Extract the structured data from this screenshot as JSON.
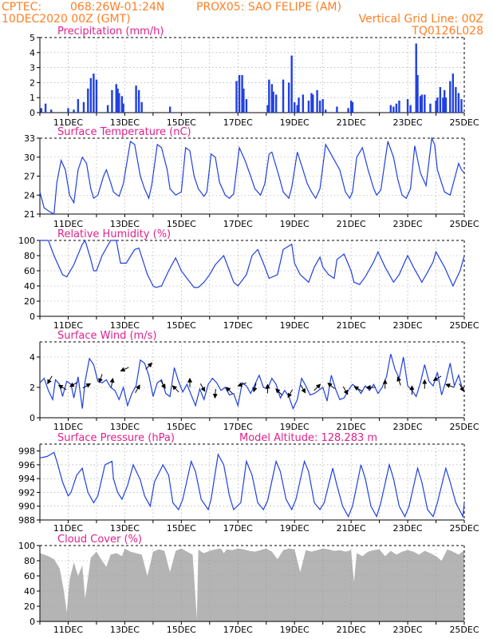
{
  "header": {
    "line1_left": "CPTEC:",
    "line1_coords": "068:26W-01:24N",
    "line1_station": "PROX05: SAO FELIPE (AM)",
    "line2_left": "10DEC2020 00Z (GMT)",
    "line2_right": "Vertical Grid Line: 00Z",
    "line3_right": "TQ0126L028"
  },
  "colors": {
    "header": "#ff7f24",
    "title": "#e0208c",
    "series": "#2040e0",
    "arrow": "#000000",
    "cloud": "#b4b4b4"
  },
  "x_axis": {
    "start_day": 10,
    "end_day": 25,
    "ticks": [
      "11DEC",
      "13DEC",
      "15DEC",
      "17DEC",
      "19DEC",
      "21DEC",
      "23DEC",
      "25DEC"
    ],
    "tick_days": [
      11,
      13,
      15,
      17,
      19,
      21,
      23,
      25
    ]
  },
  "chart_data": [
    {
      "id": "precip",
      "type": "bar",
      "title": "Precipitation (mm/h)",
      "ylim": [
        0,
        5
      ],
      "yticks": [
        0,
        1,
        2,
        3,
        4,
        5
      ],
      "x_unit": "day of Dec 2020",
      "x": [
        10.05,
        10.2,
        10.4,
        11.0,
        11.2,
        11.35,
        11.55,
        11.7,
        11.8,
        11.9,
        12.0,
        12.4,
        12.55,
        12.7,
        12.75,
        12.8,
        12.9,
        12.95,
        13.4,
        13.5,
        13.6,
        14.6,
        16.95,
        17.05,
        17.15,
        17.2,
        17.3,
        18.05,
        18.1,
        18.2,
        18.25,
        18.35,
        18.6,
        18.8,
        18.9,
        19.0,
        19.1,
        19.15,
        19.3,
        19.5,
        19.6,
        19.65,
        19.8,
        19.9,
        20.0,
        20.1,
        20.5,
        20.9,
        21.0,
        21.05,
        22.4,
        22.5,
        22.6,
        22.7,
        23.0,
        23.1,
        23.3,
        23.35,
        23.45,
        23.5,
        23.6,
        23.8,
        24.0,
        24.05,
        24.15,
        24.25,
        24.3,
        24.35,
        24.5,
        24.6,
        24.7,
        24.8,
        24.9
      ],
      "values": [
        0.3,
        0.6,
        0.2,
        0.3,
        0.2,
        0.9,
        0.7,
        1.6,
        2.3,
        2.6,
        2.2,
        0.5,
        1.5,
        1.9,
        1.6,
        1.3,
        1.1,
        0.6,
        1.8,
        1.5,
        0.7,
        0.4,
        2.1,
        2.5,
        2.5,
        1.6,
        0.9,
        0.5,
        2.2,
        1.9,
        1.4,
        1.2,
        2.2,
        2.0,
        3.8,
        0.7,
        0.5,
        1.0,
        1.2,
        0.8,
        1.3,
        1.2,
        1.5,
        0.8,
        0.9,
        0.2,
        0.4,
        0.3,
        0.8,
        0.7,
        0.5,
        0.4,
        0.6,
        0.8,
        0.9,
        0.5,
        4.6,
        2.5,
        1.1,
        1.2,
        1.2,
        0.6,
        0.8,
        1.0,
        1.7,
        1.0,
        1.5,
        1.0,
        2.1,
        2.6,
        1.7,
        1.3,
        0.9
      ]
    },
    {
      "id": "temp",
      "type": "line",
      "title": "Surface Temperature (nC)",
      "ylim": [
        21,
        33
      ],
      "yticks": [
        21,
        24,
        27,
        30,
        33
      ],
      "x_unit": "day of Dec 2020",
      "x": [
        10.0,
        10.15,
        10.3,
        10.5,
        10.6,
        10.75,
        10.9,
        11.05,
        11.2,
        11.35,
        11.5,
        11.65,
        11.8,
        11.9,
        12.05,
        12.25,
        12.35,
        12.5,
        12.6,
        12.8,
        12.95,
        13.2,
        13.35,
        13.55,
        13.7,
        13.85,
        13.95,
        14.15,
        14.3,
        14.5,
        14.6,
        14.8,
        15.0,
        15.15,
        15.3,
        15.45,
        15.6,
        15.8,
        15.9,
        16.05,
        16.2,
        16.35,
        16.55,
        16.7,
        16.85,
        17.05,
        17.25,
        17.45,
        17.6,
        17.8,
        17.95,
        18.1,
        18.2,
        18.45,
        18.6,
        18.8,
        18.9,
        19.1,
        19.3,
        19.45,
        19.6,
        19.75,
        19.9,
        20.1,
        20.35,
        20.6,
        20.8,
        20.95,
        21.05,
        21.2,
        21.4,
        21.6,
        21.8,
        21.9,
        22.05,
        22.3,
        22.5,
        22.65,
        22.8,
        22.95,
        23.1,
        23.25,
        23.45,
        23.65,
        23.85,
        23.95,
        24.05,
        24.3,
        24.5,
        24.65,
        24.8,
        24.9,
        25.0
      ],
      "values": [
        24.5,
        22.0,
        21.5,
        21.0,
        26.0,
        29.5,
        28.0,
        24.0,
        22.8,
        28.0,
        30.0,
        29.0,
        25.0,
        23.5,
        24.0,
        27.0,
        28.0,
        26.0,
        24.5,
        23.8,
        25.8,
        32.5,
        32.0,
        27.0,
        25.0,
        23.5,
        25.5,
        32.0,
        31.5,
        28.0,
        25.0,
        24.0,
        24.5,
        31.5,
        31.0,
        27.0,
        25.0,
        23.8,
        24.5,
        30.5,
        30.0,
        26.0,
        24.0,
        23.5,
        24.2,
        31.5,
        29.5,
        27.0,
        25.0,
        24.0,
        25.8,
        30.5,
        30.8,
        27.0,
        24.5,
        23.5,
        25.2,
        30.8,
        28.0,
        25.8,
        24.5,
        23.5,
        25.0,
        32.0,
        30.0,
        28.0,
        24.5,
        23.5,
        24.5,
        30.0,
        31.5,
        28.0,
        25.0,
        24.0,
        24.8,
        32.5,
        30.0,
        26.5,
        24.0,
        23.5,
        25.0,
        31.8,
        27.5,
        25.5,
        33.0,
        32.0,
        28.0,
        24.5,
        24.0,
        26.5,
        29.0,
        28.0,
        27.5
      ]
    },
    {
      "id": "rh",
      "type": "line",
      "title": "Relative Humidity (%)",
      "ylim": [
        0,
        100
      ],
      "yticks": [
        0,
        20,
        40,
        60,
        80,
        100
      ],
      "x_unit": "day of Dec 2020",
      "x": [
        10.0,
        10.3,
        10.5,
        10.8,
        10.95,
        11.2,
        11.5,
        11.6,
        11.8,
        11.9,
        12.0,
        12.2,
        12.5,
        12.7,
        12.85,
        13.05,
        13.35,
        13.5,
        13.8,
        14.0,
        14.1,
        14.3,
        14.55,
        14.8,
        15.0,
        15.2,
        15.45,
        15.6,
        15.8,
        16.0,
        16.2,
        16.5,
        16.7,
        16.85,
        17.0,
        17.3,
        17.5,
        17.7,
        17.9,
        18.1,
        18.4,
        18.6,
        18.9,
        19.0,
        19.2,
        19.5,
        19.7,
        19.9,
        20.0,
        20.2,
        20.4,
        20.5,
        20.75,
        21.0,
        21.1,
        21.3,
        21.5,
        21.8,
        21.95,
        22.2,
        22.5,
        22.7,
        22.9,
        23.0,
        23.2,
        23.5,
        23.7,
        23.9,
        24.0,
        24.3,
        24.6,
        24.85,
        25.0
      ],
      "values": [
        100,
        100,
        80,
        55,
        52,
        68,
        95,
        100,
        75,
        60,
        60,
        80,
        100,
        100,
        70,
        70,
        88,
        90,
        55,
        40,
        38,
        40,
        60,
        77,
        60,
        50,
        38,
        38,
        45,
        55,
        68,
        80,
        60,
        45,
        40,
        55,
        80,
        88,
        70,
        50,
        55,
        88,
        95,
        70,
        55,
        45,
        65,
        78,
        65,
        55,
        50,
        75,
        82,
        60,
        45,
        42,
        52,
        72,
        85,
        65,
        45,
        55,
        72,
        80,
        65,
        45,
        58,
        72,
        85,
        65,
        40,
        60,
        80
      ]
    },
    {
      "id": "wind",
      "type": "line",
      "title": "Surface Wind (m/s)",
      "ylim": [
        0,
        5
      ],
      "yticks": [
        0,
        2,
        4
      ],
      "x_unit": "day of Dec 2020",
      "x": [
        10.0,
        10.15,
        10.3,
        10.45,
        10.55,
        10.7,
        10.8,
        10.95,
        11.1,
        11.2,
        11.35,
        11.5,
        11.6,
        11.75,
        11.9,
        12.05,
        12.2,
        12.35,
        12.5,
        12.65,
        12.8,
        12.95,
        13.1,
        13.25,
        13.4,
        13.55,
        13.7,
        13.85,
        14.0,
        14.15,
        14.3,
        14.45,
        14.6,
        14.75,
        14.9,
        15.05,
        15.2,
        15.35,
        15.5,
        15.65,
        15.8,
        15.95,
        16.1,
        16.25,
        16.4,
        16.55,
        16.7,
        16.85,
        17.0,
        17.15,
        17.3,
        17.45,
        17.6,
        17.75,
        17.9,
        18.05,
        18.2,
        18.35,
        18.5,
        18.65,
        18.8,
        18.95,
        19.1,
        19.25,
        19.4,
        19.55,
        19.7,
        19.85,
        20.0,
        20.15,
        20.3,
        20.45,
        20.6,
        20.75,
        20.9,
        21.05,
        21.2,
        21.35,
        21.5,
        21.65,
        21.8,
        21.95,
        22.1,
        22.25,
        22.4,
        22.55,
        22.7,
        22.85,
        23.0,
        23.15,
        23.3,
        23.45,
        23.6,
        23.75,
        23.9,
        24.05,
        24.2,
        24.35,
        24.5,
        24.65,
        24.8,
        24.95
      ],
      "values": [
        2.3,
        2.6,
        1.8,
        1.2,
        2.5,
        2.2,
        1.4,
        2.4,
        2.2,
        1.3,
        2.7,
        0.6,
        2.4,
        3.9,
        3.5,
        2.4,
        2.3,
        2.5,
        2.0,
        1.8,
        1.2,
        2.0,
        0.8,
        1.6,
        2.1,
        3.8,
        3.6,
        2.8,
        1.4,
        2.3,
        2.5,
        1.6,
        1.4,
        3.3,
        2.4,
        1.7,
        2.2,
        1.5,
        0.8,
        1.9,
        1.2,
        2.2,
        2.6,
        2.3,
        1.8,
        2.0,
        1.5,
        1.6,
        0.8,
        2.3,
        2.1,
        1.6,
        2.2,
        2.8,
        2.0,
        1.9,
        2.6,
        2.2,
        1.3,
        1.8,
        1.4,
        0.6,
        1.2,
        2.6,
        2.1,
        1.5,
        1.6,
        1.8,
        2.0,
        1.1,
        2.8,
        1.9,
        1.2,
        1.3,
        1.8,
        2.2,
        2.0,
        1.6,
        2.1,
        1.8,
        2.2,
        1.6,
        2.0,
        2.7,
        4.2,
        3.2,
        2.6,
        4.0,
        2.1,
        1.8,
        1.4,
        2.3,
        3.5,
        2.4,
        2.1,
        3.0,
        1.5,
        2.4,
        3.6,
        2.1,
        2.8,
        1.8
      ]
    },
    {
      "id": "pressure",
      "type": "line",
      "title": "Surface Pressure (hPa)",
      "annotation": "Model Altitude: 128.283 m",
      "ylim": [
        988,
        999
      ],
      "yticks": [
        988,
        990,
        992,
        994,
        996,
        998
      ],
      "x_unit": "day of Dec 2020",
      "x": [
        10.0,
        10.25,
        10.5,
        10.6,
        10.8,
        11.0,
        11.1,
        11.3,
        11.5,
        11.55,
        11.7,
        11.9,
        12.05,
        12.3,
        12.55,
        12.6,
        12.75,
        12.9,
        13.1,
        13.3,
        13.55,
        13.7,
        13.9,
        14.05,
        14.35,
        14.55,
        14.7,
        14.9,
        15.05,
        15.35,
        15.5,
        15.7,
        15.95,
        16.05,
        16.3,
        16.5,
        16.7,
        16.85,
        17.1,
        17.3,
        17.5,
        17.7,
        17.9,
        18.05,
        18.35,
        18.5,
        18.7,
        18.9,
        19.05,
        19.35,
        19.5,
        19.7,
        19.9,
        20.05,
        20.35,
        20.5,
        20.7,
        20.9,
        21.05,
        21.35,
        21.5,
        21.7,
        21.9,
        22.05,
        22.35,
        22.5,
        22.7,
        22.9,
        23.05,
        23.35,
        23.5,
        23.7,
        23.9,
        24.05,
        24.35,
        24.5,
        24.7,
        24.95,
        25.0
      ],
      "values": [
        997.0,
        997.2,
        997.8,
        996.5,
        993.5,
        991.5,
        992.0,
        994.5,
        995.5,
        994.5,
        992.0,
        990.5,
        991.5,
        996.0,
        996.5,
        994.0,
        992.0,
        991.0,
        993.0,
        996.0,
        993.8,
        991.5,
        990.0,
        993.5,
        996.0,
        994.5,
        990.5,
        989.5,
        991.0,
        996.5,
        995.0,
        991.0,
        989.5,
        991.0,
        997.5,
        996.0,
        991.5,
        989.5,
        990.5,
        996.5,
        994.5,
        990.5,
        989.5,
        990.8,
        996.5,
        995.0,
        991.0,
        989.5,
        991.0,
        996.5,
        995.0,
        990.5,
        989.5,
        990.5,
        995.5,
        993.0,
        990.0,
        988.5,
        990.0,
        996.0,
        994.0,
        990.0,
        988.5,
        990.5,
        996.0,
        994.0,
        990.0,
        988.5,
        990.0,
        995.5,
        993.5,
        989.5,
        988.5,
        990.5,
        995.5,
        993.5,
        990.5,
        988.5,
        990.5
      ]
    },
    {
      "id": "cloud",
      "type": "area",
      "title": "Cloud Cover (%)",
      "ylim": [
        0,
        100
      ],
      "yticks": [
        0,
        20,
        40,
        60,
        80,
        100
      ],
      "x_unit": "day of Dec 2020",
      "x": [
        10.0,
        10.3,
        10.5,
        10.7,
        10.85,
        10.95,
        11.05,
        11.2,
        11.35,
        11.5,
        11.6,
        11.8,
        12.0,
        12.2,
        12.35,
        12.5,
        12.7,
        12.9,
        13.0,
        13.2,
        13.4,
        13.6,
        13.8,
        14.0,
        14.2,
        14.4,
        14.6,
        14.8,
        15.0,
        15.2,
        15.4,
        15.55,
        15.6,
        15.7,
        15.8,
        16.0,
        16.2,
        16.4,
        16.5,
        16.6,
        16.8,
        17.0,
        17.2,
        17.4,
        17.6,
        17.8,
        18.0,
        18.2,
        18.4,
        18.6,
        18.8,
        19.0,
        19.2,
        19.4,
        19.6,
        19.8,
        20.0,
        20.2,
        20.4,
        20.6,
        20.8,
        21.0,
        21.1,
        21.2,
        21.4,
        21.6,
        21.8,
        22.0,
        22.2,
        22.4,
        22.6,
        22.8,
        23.0,
        23.2,
        23.4,
        23.6,
        23.8,
        24.0,
        24.2,
        24.4,
        24.6,
        24.8,
        25.0
      ],
      "values": [
        90,
        86,
        82,
        70,
        40,
        12,
        55,
        78,
        60,
        74,
        30,
        84,
        92,
        80,
        72,
        88,
        90,
        86,
        96,
        92,
        90,
        88,
        60,
        92,
        95,
        93,
        65,
        93,
        96,
        92,
        88,
        3,
        95,
        92,
        90,
        93,
        95,
        96,
        90,
        95,
        94,
        96,
        95,
        93,
        92,
        94,
        96,
        92,
        82,
        94,
        96,
        95,
        65,
        94,
        92,
        94,
        96,
        95,
        93,
        94,
        92,
        94,
        52,
        90,
        86,
        92,
        94,
        95,
        86,
        93,
        88,
        92,
        94,
        92,
        88,
        93,
        90,
        86,
        80,
        95,
        92,
        88,
        94
      ]
    },
    {
      "id": "wind-vectors",
      "type": "scatter",
      "title": "",
      "x_unit": "day of Dec 2020",
      "x": [
        10.35,
        10.8,
        11.2,
        11.65,
        12.15,
        12.55,
        13.0,
        13.45,
        13.85,
        14.35,
        14.8,
        15.3,
        15.75,
        16.2,
        16.7,
        17.15,
        17.6,
        18.05,
        18.45,
        18.85,
        19.3,
        19.8,
        20.3,
        20.8,
        21.25,
        21.7,
        22.2,
        22.7,
        23.15,
        23.6,
        24.05,
        24.5,
        24.9
      ],
      "wind_speed_ms": [
        2.5,
        2.0,
        2.2,
        2.1,
        2.6,
        2.3,
        3.2,
        1.9,
        3.4,
        2.2,
        1.9,
        2.3,
        2.0,
        1.6,
        1.8,
        2.2,
        2.0,
        1.9,
        1.7,
        1.6,
        1.9,
        2.0,
        2.1,
        1.8,
        1.9,
        2.0,
        2.2,
        2.4,
        1.8,
        2.2,
        2.6,
        2.1,
        2.0
      ],
      "direction_deg_to": [
        240,
        150,
        210,
        30,
        250,
        80,
        205,
        60,
        45,
        300,
        135,
        90,
        300,
        265,
        135,
        200,
        255,
        90,
        135,
        240,
        300,
        45,
        140,
        300,
        150,
        180,
        90,
        110,
        90,
        90,
        210,
        160,
        300
      ]
    }
  ]
}
